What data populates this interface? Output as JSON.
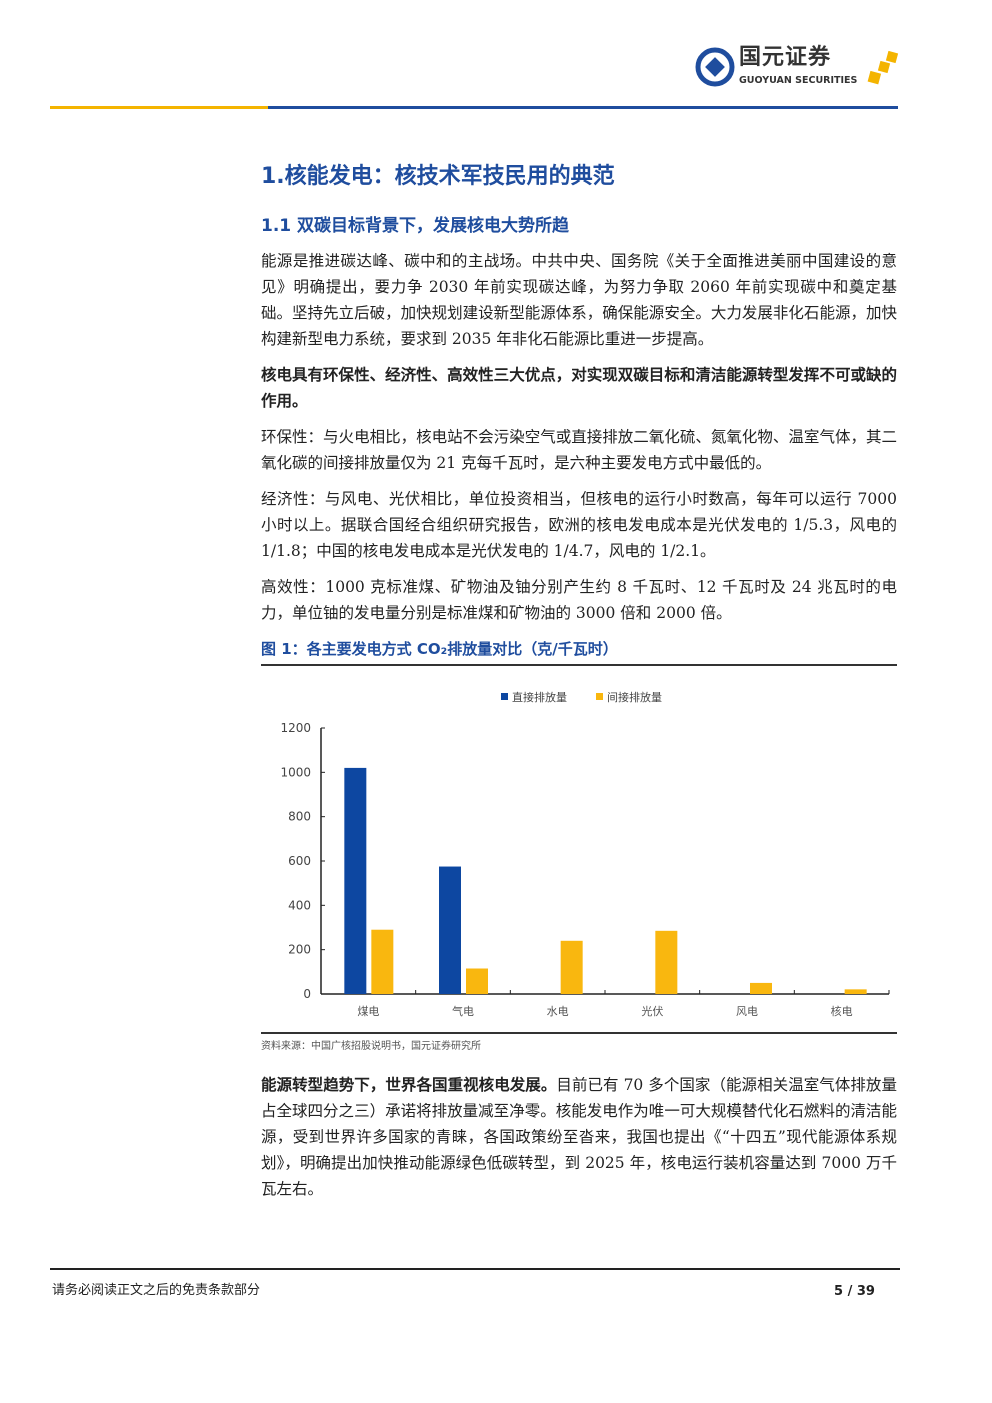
{
  "header": {
    "logo_cn": "国元证券",
    "logo_en": "GUOYUAN SECURITIES"
  },
  "section_title": "1.核能发电：核技术军技民用的典范",
  "subsection_title": "1.1 双碳目标背景下，发展核电大势所趋",
  "paragraphs": [
    "能源是推进碳达峰、碳中和的主战场。中共中央、国务院《关于全面推进美丽中国建设的意见》明确提出，要力争 2030 年前实现碳达峰，为努力争取 2060 年前实现碳中和奠定基础。坚持先立后破，加快规划建设新型能源体系，确保能源安全。大力发展非化石能源，加快构建新型电力系统，要求到 2035 年非化石能源比重进一步提高。",
    "核电具有环保性、经济性、高效性三大优点，对实现双碳目标和清洁能源转型发挥不可或缺的作用。",
    "环保性：与火电相比，核电站不会污染空气或直接排放二氧化硫、氮氧化物、温室气体，其二氧化碳的间接排放量仅为 21 克每千瓦时，是六种主要发电方式中最低的。",
    "经济性：与风电、光伏相比，单位投资相当，但核电的运行小时数高，每年可以运行 7000 小时以上。据联合国经合组织研究报告，欧洲的核电发电成本是光伏发电的 1/5.3，风电的 1/1.8；中国的核电发电成本是光伏发电的 1/4.7，风电的 1/2.1。",
    "高效性：1000 克标准煤、矿物油及铀分别产生约 8 千瓦时、12 千瓦时及 24 兆瓦时的电力，单位铀的发电量分别是标准煤和矿物油的 3000 倍和 2000 倍。"
  ],
  "figure_title": "图 1：各主要发电方式 CO₂排放量对比（克/千瓦时）",
  "chart_data": {
    "type": "bar",
    "categories": [
      "煤电",
      "气电",
      "水电",
      "光伏",
      "风电",
      "核电"
    ],
    "series": [
      {
        "name": "直接排放量",
        "color": "#0d47a1",
        "values": [
          1020,
          575,
          0,
          0,
          0,
          0
        ]
      },
      {
        "name": "间接排放量",
        "color": "#f9b70f",
        "values": [
          290,
          115,
          240,
          285,
          50,
          21
        ]
      }
    ],
    "ylim": [
      0,
      1200
    ],
    "yticks": [
      0,
      200,
      400,
      600,
      800,
      1000,
      1200
    ],
    "legend": "top",
    "grid": false
  },
  "source": "资料来源：中国广核招股说明书，国元证券研究所",
  "closing": {
    "bold": "能源转型趋势下，世界各国重视核电发展。",
    "text": "目前已有 70 多个国家（能源相关温室气体排放量占全球四分之三）承诺将排放量减至净零。核能发电作为唯一可大规模替代化石燃料的清洁能源，受到世界许多国家的青睐，各国政策纷至沓来，我国也提出《“十四五”现代能源体系规划》，明确提出加快推动能源绿色低碳转型，到 2025 年，核电运行装机容量达到 7000 万千瓦左右。"
  },
  "footer": {
    "disclaimer": "请务必阅读正文之后的免责条款部分",
    "page": "5 / 39"
  }
}
